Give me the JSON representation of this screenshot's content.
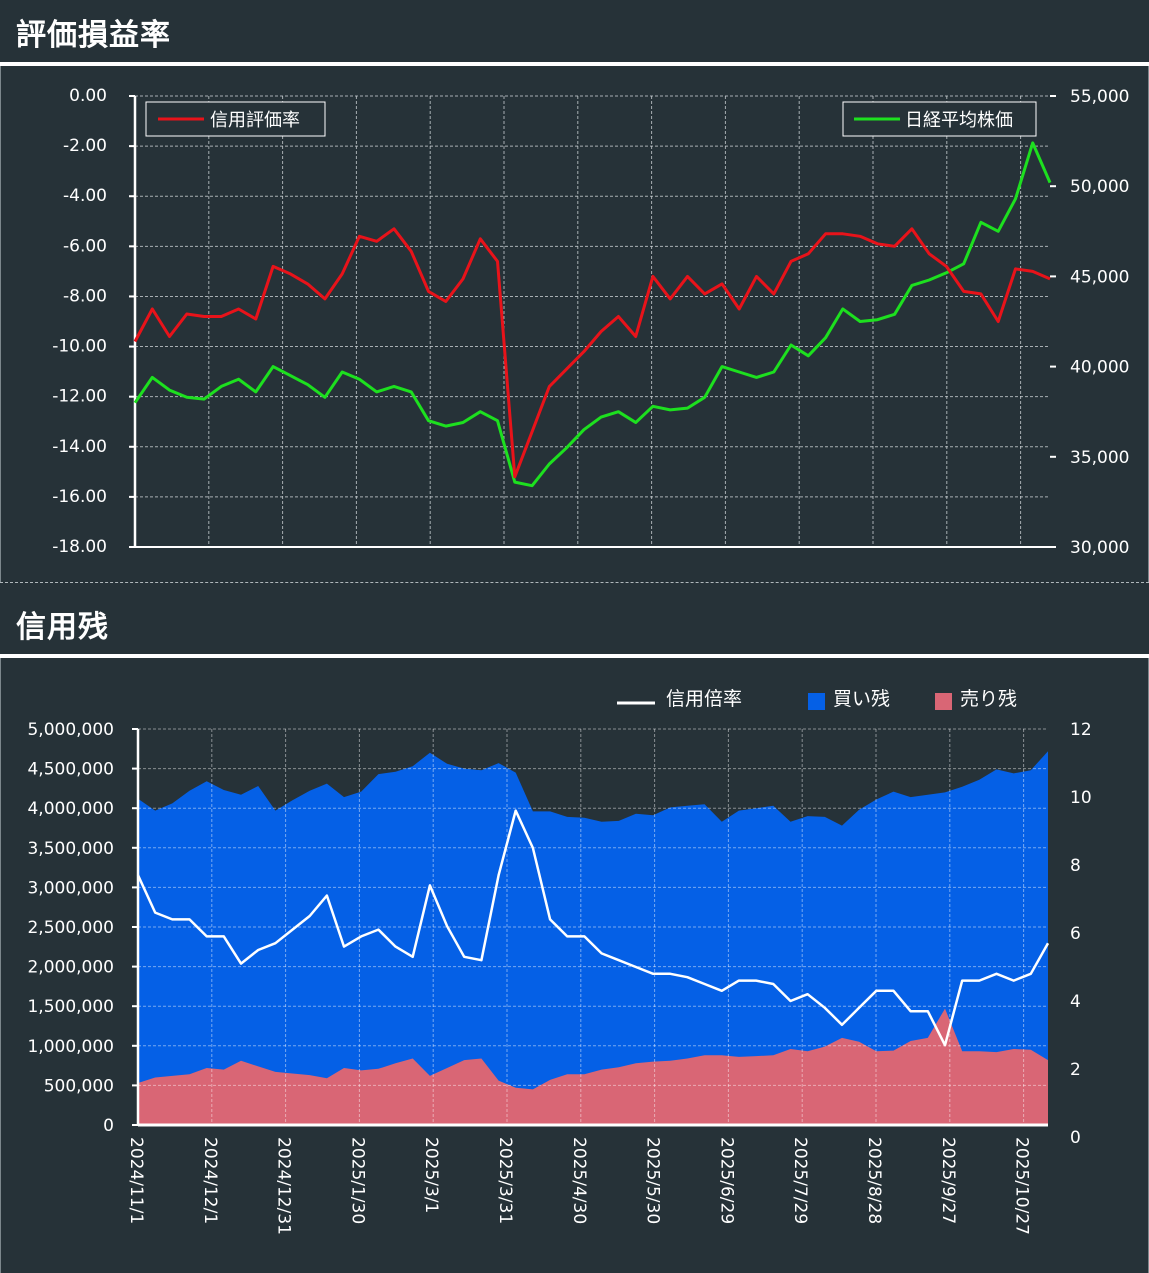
{
  "sections": {
    "pnl_title": "評価損益率",
    "margin_title": "信用残"
  },
  "colors": {
    "background": "#263238",
    "eval_rate": "#e8131a",
    "nikkei": "#1de01f",
    "ratio": "#ffffff",
    "buy": "#0560e6",
    "sell": "#d96675"
  },
  "chart_data": [
    {
      "type": "line",
      "y_left_ticks": [
        "0.00",
        "-2.00",
        "-4.00",
        "-6.00",
        "-8.00",
        "-10.00",
        "-12.00",
        "-14.00",
        "-16.00",
        "-18.00"
      ],
      "y_right_ticks": [
        "55,000",
        "50,000",
        "45,000",
        "40,000",
        "35,000",
        "30,000"
      ],
      "ylim_left": [
        -18,
        0
      ],
      "ylim_right": [
        30000,
        55000
      ],
      "grid": true,
      "series": [
        {
          "name": "信用評価率",
          "axis": "left",
          "values": [
            -9.8,
            -8.5,
            -9.6,
            -8.7,
            -8.8,
            -8.8,
            -8.5,
            -8.9,
            -6.8,
            -7.1,
            -7.5,
            -8.1,
            -7.1,
            -5.6,
            -5.8,
            -5.3,
            -6.2,
            -7.8,
            -8.2,
            -7.3,
            -5.7,
            -6.6,
            -15.2,
            -13.4,
            -11.6,
            -10.9,
            -10.2,
            -9.4,
            -8.8,
            -9.6,
            -7.2,
            -8.1,
            -7.2,
            -7.9,
            -7.5,
            -8.5,
            -7.2,
            -7.9,
            -6.6,
            -6.3,
            -5.5,
            -5.5,
            -5.6,
            -5.9,
            -6.0,
            -5.3,
            -6.3,
            -6.8,
            -7.8,
            -7.9,
            -9.0,
            -6.9,
            -7.0,
            -7.3
          ]
        },
        {
          "name": "日経平均株価",
          "axis": "right",
          "values": [
            38000,
            39400,
            38700,
            38300,
            38200,
            38900,
            39300,
            38600,
            40000,
            39500,
            39000,
            38300,
            39700,
            39300,
            38600,
            38900,
            38600,
            37000,
            36700,
            36900,
            37500,
            37000,
            33600,
            33400,
            34600,
            35500,
            36500,
            37200,
            37500,
            36900,
            37800,
            37600,
            37700,
            38300,
            40000,
            39700,
            39400,
            39700,
            41200,
            40600,
            41600,
            43200,
            42500,
            42600,
            42900,
            44500,
            44800,
            45200,
            45700,
            48000,
            47500,
            49300,
            52400,
            50200
          ]
        }
      ]
    },
    {
      "type": "area",
      "y_left_ticks": [
        "5,000,000",
        "4,500,000",
        "4,000,000",
        "3,500,000",
        "3,000,000",
        "2,500,000",
        "2,000,000",
        "1,500,000",
        "1,000,000",
        "500,000",
        "0"
      ],
      "y_right_ticks": [
        "12",
        "10",
        "8",
        "6",
        "4",
        "2",
        "0"
      ],
      "ylim_left": [
        0,
        5000000
      ],
      "ylim_right": [
        0,
        12
      ],
      "grid": true,
      "x_ticks": [
        "2024/11/1",
        "2024/12/1",
        "2024/12/31",
        "2025/1/30",
        "2025/3/1",
        "2025/3/31",
        "2025/4/30",
        "2025/5/30",
        "2025/6/29",
        "2025/7/29",
        "2025/8/28",
        "2025/9/27",
        "2025/10/27"
      ],
      "legend": {
        "position": "top-right"
      },
      "series": [
        {
          "name": "買い残",
          "axis": "left",
          "values": [
            4120000,
            3970000,
            4060000,
            4220000,
            4340000,
            4230000,
            4170000,
            4280000,
            3970000,
            4100000,
            4220000,
            4310000,
            4140000,
            4210000,
            4430000,
            4460000,
            4530000,
            4700000,
            4560000,
            4500000,
            4480000,
            4570000,
            4450000,
            3960000,
            3960000,
            3890000,
            3880000,
            3830000,
            3840000,
            3930000,
            3910000,
            4010000,
            4030000,
            4050000,
            3830000,
            3970000,
            4000000,
            4030000,
            3830000,
            3900000,
            3890000,
            3780000,
            3980000,
            4110000,
            4210000,
            4140000,
            4170000,
            4200000,
            4270000,
            4360000,
            4490000,
            4440000,
            4480000,
            4720000
          ]
        },
        {
          "name": "売り残",
          "axis": "left",
          "values": [
            530000,
            600000,
            620000,
            640000,
            720000,
            700000,
            810000,
            740000,
            670000,
            650000,
            630000,
            590000,
            720000,
            690000,
            710000,
            780000,
            840000,
            620000,
            720000,
            820000,
            840000,
            560000,
            470000,
            450000,
            570000,
            640000,
            640000,
            700000,
            730000,
            780000,
            800000,
            810000,
            840000,
            880000,
            880000,
            860000,
            870000,
            880000,
            960000,
            930000,
            990000,
            1100000,
            1050000,
            930000,
            940000,
            1060000,
            1100000,
            1470000,
            930000,
            930000,
            920000,
            960000,
            950000,
            820000
          ]
        },
        {
          "name": "信用倍率",
          "axis": "right",
          "type": "line",
          "values": [
            7.7,
            6.6,
            6.4,
            6.4,
            5.9,
            5.9,
            5.1,
            5.5,
            5.7,
            6.1,
            6.5,
            7.1,
            5.6,
            5.9,
            6.1,
            5.6,
            5.3,
            7.4,
            6.2,
            5.3,
            5.2,
            7.7,
            9.6,
            8.5,
            6.4,
            5.9,
            5.9,
            5.4,
            5.2,
            5.0,
            4.8,
            4.8,
            4.7,
            4.5,
            4.3,
            4.6,
            4.6,
            4.5,
            4.0,
            4.2,
            3.8,
            3.3,
            3.8,
            4.3,
            4.3,
            3.7,
            3.7,
            2.7,
            4.6,
            4.6,
            4.8,
            4.6,
            4.8,
            5.7
          ]
        }
      ]
    }
  ]
}
